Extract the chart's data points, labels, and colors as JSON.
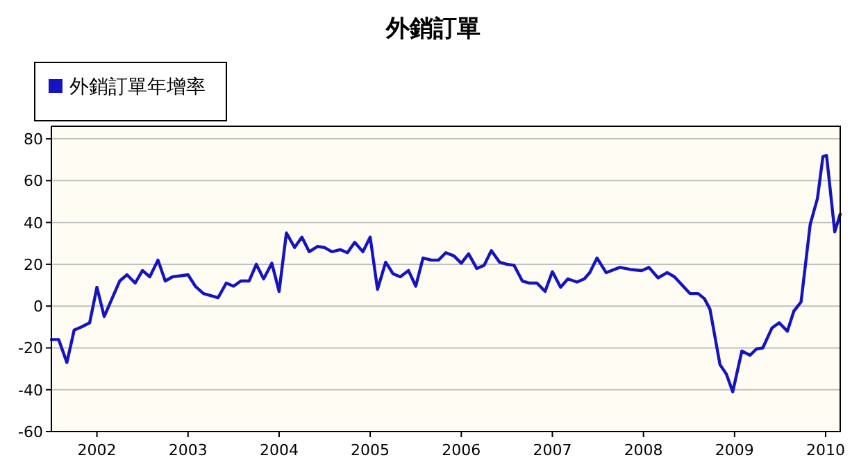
{
  "chart_data": {
    "type": "line",
    "title": "外銷訂單",
    "series": [
      {
        "name": "外銷訂單年增率",
        "color": "#1414c0",
        "x": [
          2001.5,
          2001.58,
          2001.67,
          2001.75,
          2001.83,
          2001.92,
          2002.0,
          2002.08,
          2002.17,
          2002.25,
          2002.33,
          2002.42,
          2002.5,
          2002.58,
          2002.67,
          2002.75,
          2002.83,
          2002.92,
          2003.0,
          2003.08,
          2003.17,
          2003.25,
          2003.33,
          2003.42,
          2003.5,
          2003.58,
          2003.67,
          2003.75,
          2003.83,
          2003.92,
          2004.0,
          2004.08,
          2004.17,
          2004.25,
          2004.33,
          2004.42,
          2004.5,
          2004.58,
          2004.67,
          2004.75,
          2004.83,
          2004.92,
          2005.0,
          2005.08,
          2005.17,
          2005.25,
          2005.33,
          2005.42,
          2005.5,
          2005.58,
          2005.67,
          2005.75,
          2005.83,
          2005.92,
          2006.0,
          2006.08,
          2006.17,
          2006.25,
          2006.33,
          2006.42,
          2006.5,
          2006.58,
          2006.67,
          2006.75,
          2006.83,
          2006.92,
          2007.0,
          2007.09,
          2007.17,
          2007.27,
          2007.35,
          2007.41,
          2007.49,
          2007.59,
          2007.74,
          2007.86,
          2007.98,
          2008.06,
          2008.16,
          2008.26,
          2008.34,
          2008.51,
          2008.6,
          2008.67,
          2008.73,
          2008.84,
          2008.91,
          2008.98,
          2009.08,
          2009.17,
          2009.24,
          2009.31,
          2009.41,
          2009.49,
          2009.58,
          2009.65,
          2009.73,
          2009.83,
          2009.91,
          2009.97,
          2010.01,
          2010.1,
          2010.16
        ],
        "values": [
          -16,
          -16,
          -27,
          -11.5,
          -10,
          -8,
          9,
          -5,
          4,
          12,
          15,
          11,
          17,
          14,
          22,
          12,
          14,
          14.5,
          15,
          9.5,
          6,
          5,
          4,
          11,
          9.5,
          12,
          12,
          20,
          13,
          20.5,
          7,
          35,
          28,
          33,
          26,
          28.5,
          28,
          26,
          27,
          25.5,
          30.5,
          26,
          33,
          8,
          21,
          15.5,
          14,
          17,
          9.5,
          23,
          22,
          22,
          25.5,
          24,
          20.5,
          25,
          18,
          19.5,
          26.5,
          21,
          20,
          19.5,
          12,
          11,
          11,
          7,
          16.5,
          9,
          13,
          11.5,
          13,
          16,
          23,
          16,
          18.5,
          17.5,
          17,
          18.5,
          13.5,
          16,
          14,
          6,
          6,
          3.5,
          -1.5,
          -28,
          -32.5,
          -41,
          -21.5,
          -23.5,
          -20.5,
          -20,
          -10.5,
          -8,
          -12,
          -2.5,
          2,
          39,
          51.5,
          71.5,
          72,
          35.5,
          44
        ]
      }
    ],
    "xlim": [
      2001.5,
      2010.16
    ],
    "xticks": [
      2002,
      2003,
      2004,
      2005,
      2006,
      2007,
      2008,
      2009,
      2010
    ],
    "ylim": [
      -60,
      86
    ],
    "yticks": [
      -60,
      -40,
      -20,
      0,
      20,
      40,
      60,
      80
    ],
    "grid": "y",
    "legend": "top left"
  }
}
